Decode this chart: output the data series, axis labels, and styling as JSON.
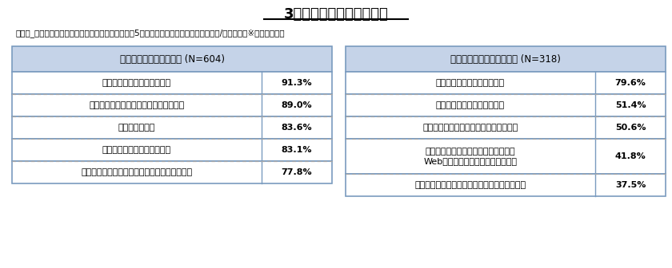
{
  "title": "3月末までの各活動実施率",
  "subtitle": "大学生_インターンシップ経験者、未経験者別　上位5項目（就職志望者・就職活動経験者/複数回答）※大学院生除く",
  "left_header": "インターンシップ経験者 (N=604)",
  "right_header": "インターンシップ未経験者 (N=318)",
  "left_rows": [
    [
      "就職に関する情報を収集した",
      "91.3%"
    ],
    [
      "エントリーシートなどの書類を提出した",
      "89.0%"
    ],
    [
      "自己分析をした",
      "83.6%"
    ],
    [
      "適性検査や筆記試験を受けた",
      "83.1%"
    ],
    [
      "スーツなど、就職活動に必要なものを購入した",
      "77.8%"
    ]
  ],
  "right_rows": [
    [
      "就職に関する情報を収集した",
      "79.6%"
    ],
    [
      "適性検査や筆記試験を受けた",
      "51.4%"
    ],
    [
      "エントリーシートなどの書類を提出した",
      "50.6%"
    ],
    [
      "個別企業の説明会・セミナーのうち、\nWeb上で開催されるものに参加した",
      "41.8%"
    ],
    [
      "企業にエントリー（資料・情報の請求）をした",
      "37.5%"
    ]
  ],
  "header_bg": "#c5d3e8",
  "header_border": "#7a9bbf",
  "row_bg": "#ffffff",
  "text_color": "#000000",
  "border_color": "#7a9bbf",
  "divider_color": "#aaaaaa",
  "title_color": "#000000",
  "bg_color": "#ffffff"
}
